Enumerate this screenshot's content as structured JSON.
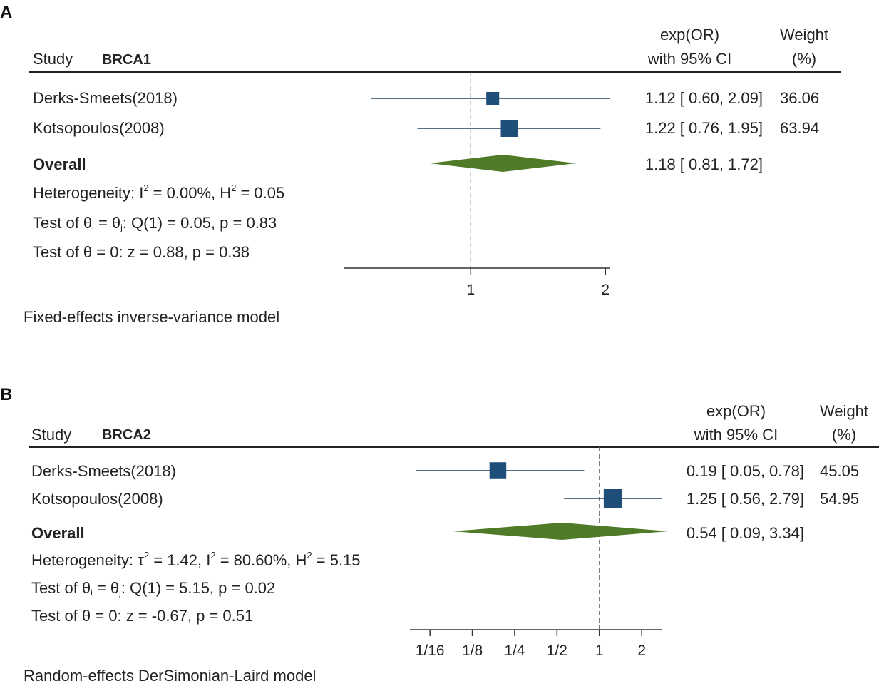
{
  "chart_data": [
    {
      "type": "forest",
      "panel_label": "A",
      "study_header": "Study",
      "group_label": "BRCA1",
      "col_effect_header": [
        "exp(OR)",
        "with 95% CI"
      ],
      "col_weight_header": [
        "Weight",
        "(%)"
      ],
      "scale": "log",
      "xlim": [
        0.52,
        2.05
      ],
      "ref_line": 1,
      "ticks": [
        {
          "value": 1,
          "label": "1"
        },
        {
          "value": 2,
          "label": "2"
        }
      ],
      "studies": [
        {
          "name": "Derks-Smeets(2018)",
          "or": 1.12,
          "lo": 0.6,
          "hi": 2.09,
          "ci_text": "1.12 [  0.60,  2.09]",
          "weight": 36.06,
          "weight_text": "36.06",
          "clip_right": true
        },
        {
          "name": "Kotsopoulos(2008)",
          "or": 1.22,
          "lo": 0.76,
          "hi": 1.95,
          "ci_text": "1.22 [  0.76,  1.95]",
          "weight": 63.94,
          "weight_text": "63.94"
        }
      ],
      "overall": {
        "label": "Overall",
        "or": 1.18,
        "lo": 0.81,
        "hi": 1.72,
        "ci_text": "1.18 [  0.81,  1.72]"
      },
      "heterogeneity": {
        "prefix": "Heterogeneity: I",
        "i2": " = 0.00%, H",
        "h2": " = 0.05"
      },
      "test_q": {
        "prefix": "Test of θ",
        "mid": " = θ",
        "rest": ": Q(1) = 0.05, p = 0.83"
      },
      "test_z": "Test of θ = 0: z = 0.88, p = 0.38",
      "model_note": "Fixed-effects inverse-variance model",
      "colors": {
        "square": "#1f4e79",
        "diamond": "#4f7a28",
        "line": "#1f3f5f",
        "axis": "#333333"
      }
    },
    {
      "type": "forest",
      "panel_label": "B",
      "study_header": "Study",
      "group_label": "BRCA2",
      "col_effect_header": [
        "exp(OR)",
        "with 95% CI"
      ],
      "col_weight_header": [
        "Weight",
        "(%)"
      ],
      "scale": "log",
      "xlim": [
        0.045,
        2.8
      ],
      "ref_line": 1,
      "ticks": [
        {
          "value": 0.0625,
          "label": "1/16"
        },
        {
          "value": 0.125,
          "label": "1/8"
        },
        {
          "value": 0.25,
          "label": "1/4"
        },
        {
          "value": 0.5,
          "label": "1/2"
        },
        {
          "value": 1,
          "label": "1"
        },
        {
          "value": 2,
          "label": "2"
        }
      ],
      "studies": [
        {
          "name": "Derks-Smeets(2018)",
          "or": 0.19,
          "lo": 0.05,
          "hi": 0.78,
          "ci_text": "0.19 [  0.05,  0.78]",
          "weight": 45.05,
          "weight_text": "45.05"
        },
        {
          "name": "Kotsopoulos(2008)",
          "or": 1.25,
          "lo": 0.56,
          "hi": 2.79,
          "ci_text": "1.25 [  0.56,  2.79]",
          "weight": 54.95,
          "weight_text": "54.95"
        }
      ],
      "overall": {
        "label": "Overall",
        "or": 0.54,
        "lo": 0.09,
        "hi": 3.34,
        "ci_text": "0.54 [  0.09,  3.34]",
        "clip_right": true
      },
      "heterogeneity": {
        "prefix": "Heterogeneity: τ",
        "t2": " = 1.42, I",
        "i2": " = 80.60%, H",
        "h2": " = 5.15"
      },
      "test_q": {
        "prefix": "Test of θ",
        "mid": " = θ",
        "rest": ": Q(1) = 5.15, p = 0.02"
      },
      "test_z": "Test of θ = 0: z = -0.67, p = 0.51",
      "model_note": "Random-effects DerSimonian-Laird model",
      "colors": {
        "square": "#1f4e79",
        "diamond": "#4f7a28",
        "line": "#1f3f5f",
        "axis": "#333333"
      }
    }
  ]
}
